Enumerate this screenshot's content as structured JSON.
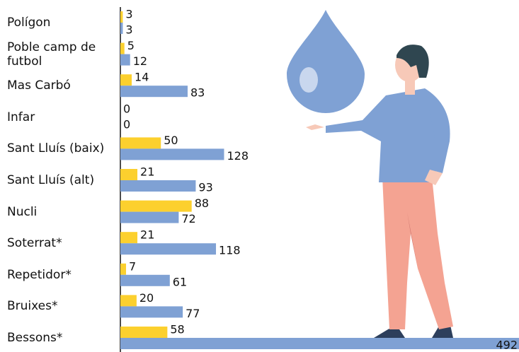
{
  "chart_data": {
    "type": "bar",
    "orientation": "horizontal",
    "categories": [
      "Polígon",
      "Poble camp de futbol",
      "Mas Carbó",
      "Infar",
      "Sant Lluís (baix)",
      "Sant Lluís (alt)",
      "Nucli",
      "Soterrat*",
      "Repetidor*",
      "Bruixes*",
      "Bessons*"
    ],
    "series": [
      {
        "color": "#fcd02e",
        "values": [
          3,
          5,
          14,
          0,
          50,
          21,
          88,
          21,
          7,
          20,
          58
        ]
      },
      {
        "color": "#7fa1d4",
        "values": [
          3,
          12,
          83,
          0,
          128,
          93,
          72,
          118,
          61,
          77,
          492
        ]
      }
    ],
    "xlim": [
      0,
      492
    ]
  }
}
